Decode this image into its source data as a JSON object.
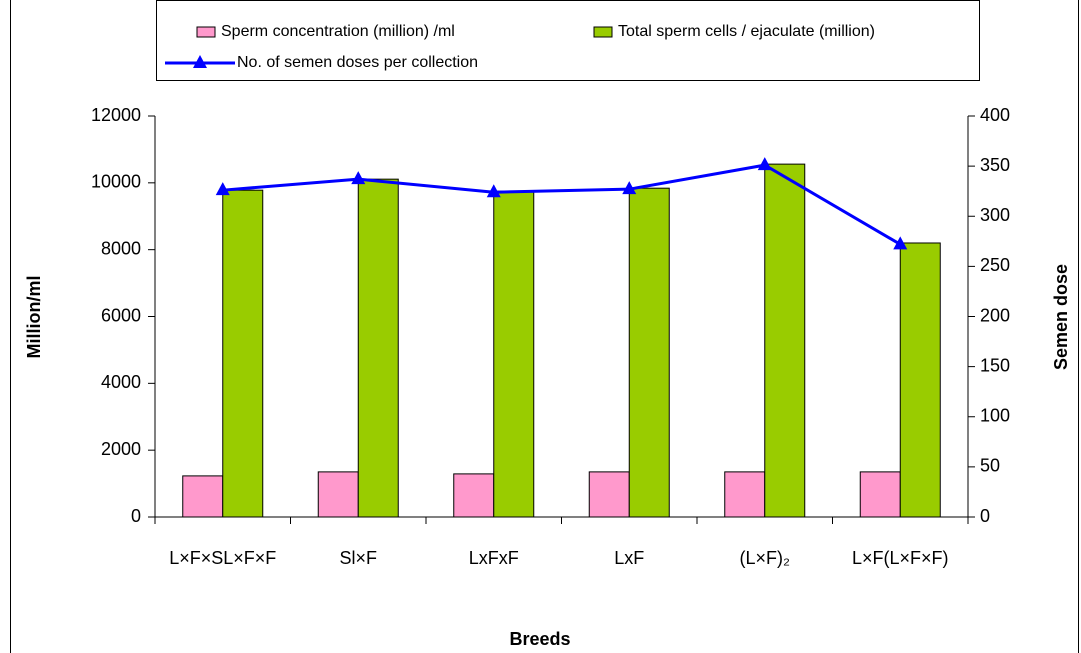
{
  "chart_data": {
    "type": "bar",
    "categories": [
      "L×F×SL×F×F",
      "Sl×F",
      "LxFxF",
      "LxF",
      "(L×F)₂",
      "L×F(L×F×F)"
    ],
    "series": [
      {
        "name": "Sperm concentration (million) /ml",
        "type": "bar",
        "color": "#ff99cc",
        "values": [
          1230,
          1350,
          1290,
          1350,
          1350,
          1350
        ]
      },
      {
        "name": "Total sperm cells / ejaculate (million)",
        "type": "bar",
        "color": "#99cc00",
        "values": [
          9780,
          10110,
          9750,
          9840,
          10560,
          8200
        ]
      },
      {
        "name": "No. of semen doses per collection",
        "type": "line",
        "axis": "y2",
        "color": "#0000ff",
        "values": [
          326,
          337,
          324,
          327,
          351,
          272
        ]
      }
    ],
    "ylim": [
      0,
      12000
    ],
    "yticks": [
      0,
      2000,
      4000,
      6000,
      8000,
      10000,
      12000
    ],
    "y2lim": [
      0,
      400
    ],
    "y2ticks": [
      0,
      50,
      100,
      150,
      200,
      250,
      300,
      350,
      400
    ],
    "ylabel": "Million/ml",
    "y2label": "Semen dose",
    "xlabel": "Breeds"
  }
}
